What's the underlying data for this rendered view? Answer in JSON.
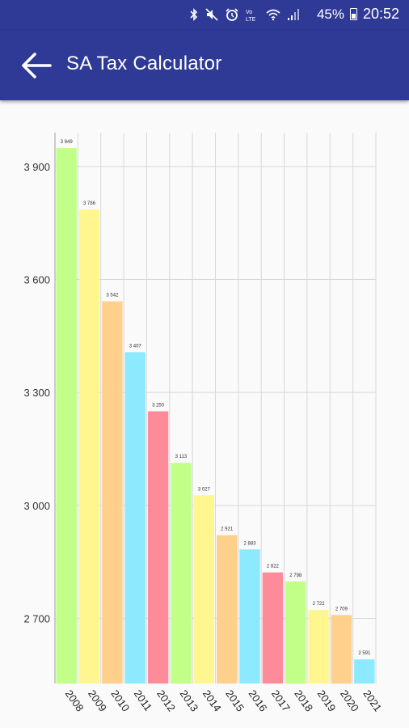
{
  "status_bar": {
    "battery_percent": "45%",
    "time": "20:52",
    "icons": [
      "bluetooth-icon",
      "mute-icon",
      "alarm-icon",
      "volte-icon",
      "wifi-icon",
      "signal-icon",
      "battery-icon"
    ]
  },
  "app_bar": {
    "title": "SA Tax Calculator",
    "back_icon": "arrow-left-icon"
  },
  "colors": {
    "app_bar": "#2e3a95",
    "series_palette": [
      "#c1ff89",
      "#fff690",
      "#ffd08c",
      "#8ce9fe",
      "#fe8b99"
    ]
  },
  "chart_data": {
    "type": "bar",
    "title": "",
    "xlabel": "",
    "ylabel": "",
    "grid": true,
    "ylim": [
      2527,
      3990
    ],
    "yticks": [
      2700,
      3000,
      3300,
      3600,
      3900
    ],
    "ytick_labels": [
      "2 700",
      "3 000",
      "3 300",
      "3 600",
      "3 900"
    ],
    "categories": [
      "2008",
      "2009",
      "2010",
      "2011",
      "2012",
      "2013",
      "2014",
      "2015",
      "2016",
      "2017",
      "2018",
      "2019",
      "2020",
      "2021"
    ],
    "values": [
      3949,
      3786,
      3542,
      3407,
      3250,
      3113,
      3027,
      2921,
      2883,
      2822,
      2798,
      2722,
      2709,
      2591
    ],
    "value_labels": [
      "3 949",
      "3 786",
      "3 542",
      "3 407",
      "3 250",
      "3 113",
      "3 027",
      "2 921",
      "2 883",
      "2 822",
      "2 798",
      "2 722",
      "2 709",
      "2 591"
    ]
  }
}
